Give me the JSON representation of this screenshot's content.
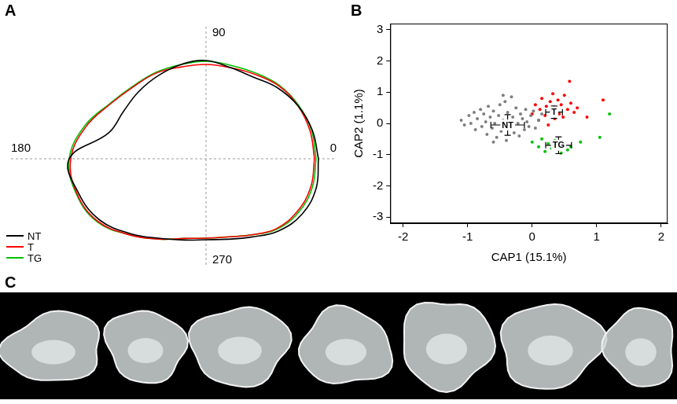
{
  "chart_data": [
    {
      "panel": "A",
      "type": "polar_outline",
      "x": [
        0,
        15,
        30,
        45,
        60,
        75,
        90,
        105,
        120,
        135,
        150,
        165,
        180,
        195,
        210,
        225,
        240,
        255,
        270,
        285,
        300,
        315,
        330,
        345
      ],
      "xticks": [
        0,
        90,
        180,
        270
      ],
      "legend": "bottom-left",
      "series": [
        {
          "name": "NT",
          "color": "#000000",
          "line_style": "solid",
          "values": [
            143,
            140,
            135,
            128,
            120,
            120,
            125,
            124,
            122,
            121,
            121,
            128,
            174,
            168,
            156,
            135,
            117,
            107,
            103,
            106,
            115,
            130,
            141,
            145
          ]
        },
        {
          "name": "T",
          "color": "#ff0000",
          "line_style": "solid",
          "values": [
            138,
            137,
            135,
            131,
            124,
            120,
            120,
            121,
            126,
            130,
            140,
            158,
            172,
            170,
            159,
            137,
            118,
            105,
            101,
            103,
            112,
            126,
            134,
            138
          ]
        },
        {
          "name": "TG",
          "color": "#00c000",
          "line_style": "solid",
          "values": [
            140,
            139,
            136,
            132,
            126,
            123,
            124,
            124,
            127,
            131,
            141,
            160,
            174,
            171,
            160,
            137,
            118,
            105,
            101,
            103,
            112,
            127,
            136,
            140
          ]
        }
      ]
    },
    {
      "panel": "B",
      "type": "scatter",
      "x_label": "CAP1 (15.1%)",
      "y_label": "CAP2 (1.1%)",
      "xlim": [
        -2.2,
        2.1
      ],
      "ylim": [
        -3.2,
        3.2
      ],
      "xticks": [
        -2,
        -1,
        0,
        1,
        2
      ],
      "yticks": [
        -3,
        -2,
        -1,
        0,
        1,
        2,
        3
      ],
      "grid": false,
      "series": [
        {
          "name": "NT",
          "color": "#7f7f7f",
          "marker": "circle",
          "x": [
            -1.1,
            -1.05,
            -0.98,
            -0.95,
            -0.9,
            -0.88,
            -0.85,
            -0.8,
            -0.78,
            -0.75,
            -0.72,
            -0.7,
            -0.68,
            -0.65,
            -0.62,
            -0.6,
            -0.58,
            -0.55,
            -0.52,
            -0.5,
            -0.48,
            -0.45,
            -0.42,
            -0.4,
            -0.38,
            -0.35,
            -0.32,
            -0.3,
            -0.28,
            -0.25,
            -0.22,
            -0.2,
            -0.18,
            -0.15,
            -0.12,
            -0.1,
            -0.08,
            -0.05,
            -0.02,
            0.02,
            0.05,
            0.1,
            0.15,
            -0.6,
            -0.45
          ],
          "values": [
            0.1,
            -0.05,
            0.25,
            0.0,
            0.35,
            -0.2,
            0.15,
            0.45,
            -0.1,
            0.3,
            0.05,
            -0.35,
            0.55,
            0.2,
            -0.15,
            0.4,
            0.0,
            -0.45,
            0.25,
            0.6,
            -0.25,
            0.1,
            0.7,
            -0.55,
            0.35,
            -0.05,
            0.85,
            0.2,
            -0.3,
            0.5,
            0.0,
            -0.4,
            0.3,
            0.15,
            -0.2,
            0.45,
            0.05,
            -0.1,
            0.25,
            0.4,
            -0.15,
            0.1,
            0.3,
            -0.6,
            0.9
          ]
        },
        {
          "name": "T",
          "color": "#ff0000",
          "marker": "circle",
          "x": [
            0.0,
            0.05,
            0.1,
            0.12,
            0.15,
            0.2,
            0.22,
            0.25,
            0.28,
            0.3,
            0.32,
            0.35,
            0.38,
            0.4,
            0.42,
            0.45,
            0.48,
            0.5,
            0.55,
            0.58,
            0.6,
            0.65,
            0.7,
            0.85,
            1.1
          ],
          "values": [
            0.3,
            0.6,
            0.1,
            0.45,
            0.8,
            0.25,
            0.55,
            -0.05,
            0.7,
            0.4,
            0.95,
            0.15,
            0.5,
            0.75,
            0.3,
            0.6,
            0.2,
            0.9,
            0.45,
            1.35,
            0.65,
            0.35,
            0.5,
            0.2,
            0.75
          ]
        },
        {
          "name": "TG",
          "color": "#00c000",
          "marker": "circle",
          "x": [
            0.0,
            0.1,
            0.15,
            0.2,
            0.25,
            0.3,
            0.35,
            0.4,
            0.45,
            0.5,
            0.55,
            0.6,
            0.75,
            1.05,
            1.2
          ],
          "values": [
            -0.6,
            -0.75,
            -0.5,
            -0.9,
            -0.65,
            -0.8,
            -0.55,
            -0.7,
            -0.95,
            -0.6,
            -0.85,
            -0.75,
            -0.6,
            -0.45,
            0.3
          ]
        }
      ],
      "means": [
        {
          "name": "NT",
          "x": -0.38,
          "y": -0.05,
          "x_error": 0.26,
          "y_error": 0.33
        },
        {
          "name": "T",
          "x": 0.34,
          "y": 0.36,
          "x_error": 0.13,
          "y_error": 0.2
        },
        {
          "name": "TG",
          "x": 0.41,
          "y": -0.7,
          "x_error": 0.2,
          "y_error": 0.27
        }
      ]
    }
  ],
  "image_panel": {
    "panel": "C"
  }
}
